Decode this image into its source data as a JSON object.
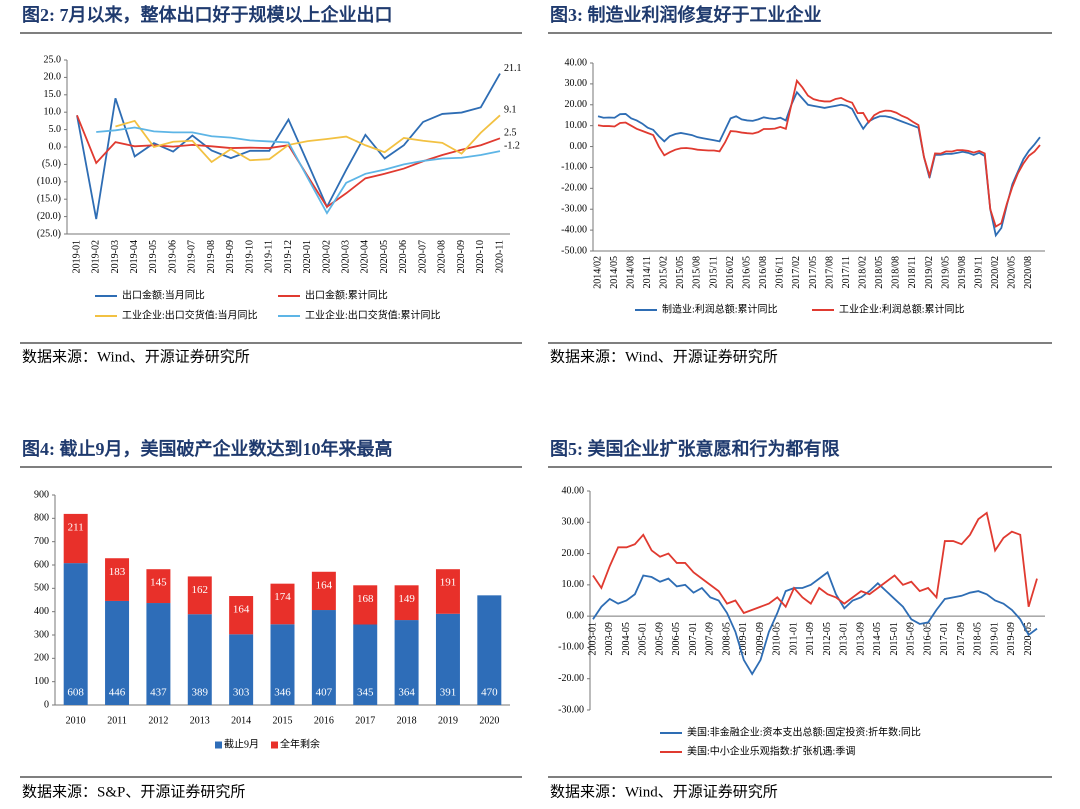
{
  "chart_data": [
    {
      "type": "line",
      "title": "图2: 7月以来，整体出口好于规模以上企业出口",
      "source": "数据来源：Wind、开源证券研究所",
      "categories": [
        "2019-01",
        "2019-02",
        "2019-03",
        "2019-04",
        "2019-05",
        "2019-06",
        "2019-07",
        "2019-08",
        "2019-09",
        "2019-10",
        "2019-11",
        "2019-12",
        "2020-01",
        "2020-02",
        "2020-03",
        "2020-04",
        "2020-05",
        "2020-06",
        "2020-07",
        "2020-08",
        "2020-09",
        "2020-10",
        "2020-11"
      ],
      "series": [
        {
          "name": "出口金额:当月同比",
          "color": "#2e6db4",
          "values": [
            9.1,
            -20.7,
            14.0,
            -2.7,
            1.1,
            -1.3,
            3.3,
            -1.0,
            -3.2,
            -1.1,
            -1.1,
            7.9,
            -4.6,
            -17.2,
            -6.6,
            3.5,
            -3.3,
            0.5,
            7.2,
            9.5,
            9.9,
            11.4,
            21.1
          ]
        },
        {
          "name": "出口金额:累计同比",
          "color": "#e03a30",
          "values": [
            9.1,
            -4.6,
            1.4,
            0.2,
            0.5,
            0.1,
            0.6,
            0.2,
            -0.3,
            -0.2,
            -0.3,
            0.5,
            -8.4,
            -17.2,
            -13.3,
            -9.0,
            -7.7,
            -6.2,
            -4.1,
            -2.3,
            -0.8,
            0.5,
            2.5
          ]
        },
        {
          "name": "工业企业:出口交货值:当月同比",
          "color": "#f2c142",
          "values": [
            null,
            null,
            5.9,
            7.5,
            0.0,
            1.5,
            1.8,
            -4.3,
            -0.6,
            -3.8,
            -3.5,
            0.6,
            1.7,
            2.3,
            3.0,
            0.5,
            -1.5,
            2.6,
            1.8,
            1.2,
            -1.9,
            4.1,
            9.1
          ]
        },
        {
          "name": "工业企业:出口交货值:累计同比",
          "color": "#5db5e6",
          "values": [
            null,
            4.3,
            4.8,
            5.6,
            4.5,
            4.2,
            4.2,
            3.1,
            2.7,
            1.9,
            1.6,
            1.3,
            -8.9,
            -19.0,
            -10.3,
            -7.7,
            -6.5,
            -5.0,
            -4.0,
            -3.3,
            -3.1,
            -2.3,
            -1.2
          ]
        }
      ],
      "ylim": [
        -25,
        25
      ],
      "yticks": [
        {
          "value": -25,
          "label": "(25.0)"
        },
        {
          "value": -20,
          "label": "(20.0)"
        },
        {
          "value": -15,
          "label": "(15.0)"
        },
        {
          "value": -10,
          "label": "(10.0)"
        },
        {
          "value": -5,
          "label": "(5.0)"
        },
        {
          "value": 0,
          "label": "0.0"
        },
        {
          "value": 5,
          "label": "5.0"
        },
        {
          "value": 10,
          "label": "10.0"
        },
        {
          "value": 15,
          "label": "15.0"
        },
        {
          "value": 20,
          "label": "20.0"
        },
        {
          "value": 25,
          "label": "25.0"
        }
      ],
      "end_labels": true,
      "grid": false
    },
    {
      "type": "line",
      "title": "图3: 制造业利润修复好于工业企业",
      "source": "数据来源：Wind、开源证券研究所",
      "categories": [
        "2014/02",
        null,
        null,
        "2014/05",
        null,
        null,
        "2014/08",
        null,
        null,
        "2014/11",
        null,
        null,
        "2015/02",
        null,
        null,
        "2015/05",
        null,
        null,
        "2015/08",
        null,
        null,
        "2015/11",
        null,
        null,
        "2016/02",
        null,
        null,
        "2016/05",
        null,
        null,
        "2016/08",
        null,
        null,
        "2016/11",
        null,
        null,
        "2017/02",
        null,
        null,
        "2017/05",
        null,
        null,
        "2017/08",
        null,
        null,
        "2017/11",
        null,
        null,
        "2018/02",
        null,
        null,
        "2018/05",
        null,
        null,
        "2018/08",
        null,
        null,
        "2018/11",
        null,
        null,
        "2019/02",
        null,
        null,
        "2019/05",
        null,
        null,
        "2019/08",
        null,
        null,
        "2019/11",
        null,
        null,
        "2020/02",
        null,
        null,
        "2020/05",
        null,
        null,
        "2020/08",
        null,
        null
      ],
      "series": [
        {
          "name": "制造业:利润总额:累计同比",
          "color": "#2e6db4",
          "values": [
            14.5,
            13.8,
            13.9,
            13.8,
            15.5,
            15.6,
            13.5,
            12.5,
            11,
            9,
            8,
            5,
            2.5,
            5,
            6,
            6.5,
            6,
            5.5,
            4.5,
            4,
            3.5,
            3,
            2.5,
            8,
            13.5,
            14.5,
            13,
            12.5,
            12.3,
            13,
            14,
            13.5,
            13.2,
            13.8,
            12.5,
            20,
            26,
            23,
            20,
            19.5,
            19,
            18.5,
            19,
            19.5,
            20,
            19.5,
            18,
            13,
            8.5,
            12,
            13.5,
            14.5,
            14.5,
            14,
            13,
            12,
            11,
            10,
            9,
            -5,
            -15,
            -4,
            -4,
            -3.5,
            -3.5,
            -3,
            -2.5,
            -3,
            -4,
            -3,
            -4.5,
            -30,
            -42.5,
            -39,
            -28,
            -18,
            -12,
            -6,
            -2,
            1,
            4.5
          ]
        },
        {
          "name": "工业企业:利润总额:累计同比",
          "color": "#e03a30",
          "values": [
            10.2,
            9.8,
            9.8,
            9.6,
            11.3,
            11.5,
            10,
            8.5,
            7.5,
            6.5,
            5.5,
            0,
            -4.2,
            -2.7,
            -1.5,
            -0.8,
            -0.7,
            -1,
            -1.5,
            -1.7,
            -1.9,
            -1.9,
            -2.3,
            2,
            7.4,
            7.2,
            6.7,
            6.4,
            6.2,
            6.9,
            8.4,
            8.4,
            8.6,
            9.4,
            8.5,
            20,
            31.5,
            28.3,
            24.4,
            22.7,
            22,
            21.6,
            21.6,
            22.8,
            23.3,
            21.9,
            21,
            16,
            16.1,
            11.6,
            15,
            16.5,
            17.2,
            17.1,
            16.2,
            14.7,
            13.6,
            11.8,
            10.3,
            -5,
            -14,
            -3.3,
            -3.4,
            -2.3,
            -2.4,
            -1.7,
            -1.7,
            -2.1,
            -2.9,
            -2.1,
            -3.3,
            -30,
            -38.3,
            -36.7,
            -27.4,
            -19.3,
            -12.8,
            -8.1,
            -4.4,
            -2.4,
            0.7
          ]
        }
      ],
      "ylim": [
        -50,
        40
      ],
      "yticks": [
        {
          "value": -50,
          "label": "-50.00"
        },
        {
          "value": -40,
          "label": "-40.00"
        },
        {
          "value": -30,
          "label": "-30.00"
        },
        {
          "value": -20,
          "label": "-20.00"
        },
        {
          "value": -10,
          "label": "-10.00"
        },
        {
          "value": 0,
          "label": "0.00"
        },
        {
          "value": 10,
          "label": "10.00"
        },
        {
          "value": 20,
          "label": "20.00"
        },
        {
          "value": 30,
          "label": "30.00"
        },
        {
          "value": 40,
          "label": "40.00"
        }
      ],
      "grid": false
    },
    {
      "type": "stacked_bar",
      "title": "图4: 截止9月，美国破产企业数达到10年来最高",
      "source": "数据来源：S&P、开源证券研究所",
      "categories": [
        "2010",
        "2011",
        "2012",
        "2013",
        "2014",
        "2015",
        "2016",
        "2017",
        "2018",
        "2019",
        "2020"
      ],
      "series": [
        {
          "name": "截止9月",
          "color": "#2e6db8",
          "values": [
            608,
            446,
            437,
            389,
            303,
            346,
            407,
            345,
            364,
            391,
            470
          ]
        },
        {
          "name": "全年剩余",
          "color": "#e8302a",
          "values": [
            211,
            183,
            145,
            162,
            164,
            174,
            164,
            168,
            149,
            191,
            null
          ]
        }
      ],
      "ylim": [
        0,
        900
      ],
      "yticks": [
        0,
        100,
        200,
        300,
        400,
        500,
        600,
        700,
        800,
        900
      ],
      "data_labels": true,
      "grid": false
    },
    {
      "type": "line",
      "title": "图5: 美国企业扩张意愿和行为都有限",
      "source": "数据来源：Wind、开源证券研究所",
      "categories": [
        "2003-01",
        null,
        "2003-09",
        null,
        "2004-05",
        null,
        "2005-01",
        null,
        "2005-09",
        null,
        "2006-05",
        null,
        "2007-01",
        null,
        "2007-09",
        null,
        "2008-05",
        null,
        "2009-01",
        null,
        "2009-09",
        null,
        "2010-05",
        null,
        "2011-01",
        null,
        "2011-09",
        null,
        "2012-05",
        null,
        "2013-01",
        null,
        "2013-09",
        null,
        "2014-05",
        null,
        "2015-01",
        null,
        "2015-09",
        null,
        "2016-05",
        null,
        "2017-01",
        null,
        "2017-09",
        null,
        "2018-05",
        null,
        "2019-01",
        null,
        "2019-09",
        null,
        "2020-05",
        null
      ],
      "series": [
        {
          "name": "美国:非金融企业:资本支出总额:固定投资:折年数:同比",
          "color": "#2e6db4",
          "values": [
            -1,
            3,
            5.5,
            4,
            5,
            7,
            13,
            12.5,
            11,
            12,
            9.5,
            10,
            7.5,
            9,
            6,
            5,
            1,
            -5,
            -14,
            -18.5,
            -14,
            -5,
            1,
            8,
            9,
            9,
            10,
            12,
            14,
            7,
            2.5,
            5,
            6,
            8,
            10.5,
            8,
            5.5,
            3,
            -1,
            -2.5,
            -2,
            2,
            5.5,
            6,
            6.5,
            7.5,
            8,
            7,
            5,
            4,
            2,
            -1,
            -6,
            -4
          ]
        },
        {
          "name": "美国:中小企业乐观指数:扩张机遇:季调",
          "color": "#e03a30",
          "values": [
            13,
            9,
            16,
            22,
            22,
            23,
            26,
            21,
            19,
            20,
            17,
            17,
            14,
            12,
            10,
            8,
            4,
            5,
            1,
            2,
            3,
            4,
            6,
            3,
            9,
            6,
            4,
            9,
            7,
            6,
            4,
            6,
            8,
            7,
            9,
            11,
            13,
            10,
            11,
            8,
            9,
            6,
            24,
            24,
            23,
            26,
            31,
            33,
            21,
            25,
            27,
            26,
            3,
            12
          ]
        }
      ],
      "ylim": [
        -30,
        40
      ],
      "yticks": [
        {
          "value": -30,
          "label": "-30.00"
        },
        {
          "value": -20,
          "label": "-20.00"
        },
        {
          "value": -10,
          "label": "-10.00"
        },
        {
          "value": 0,
          "label": "0.00"
        },
        {
          "value": 10,
          "label": "10.00"
        },
        {
          "value": 20,
          "label": "20.00"
        },
        {
          "value": 30,
          "label": "30.00"
        },
        {
          "value": 40,
          "label": "40.00"
        }
      ],
      "grid": false
    }
  ]
}
